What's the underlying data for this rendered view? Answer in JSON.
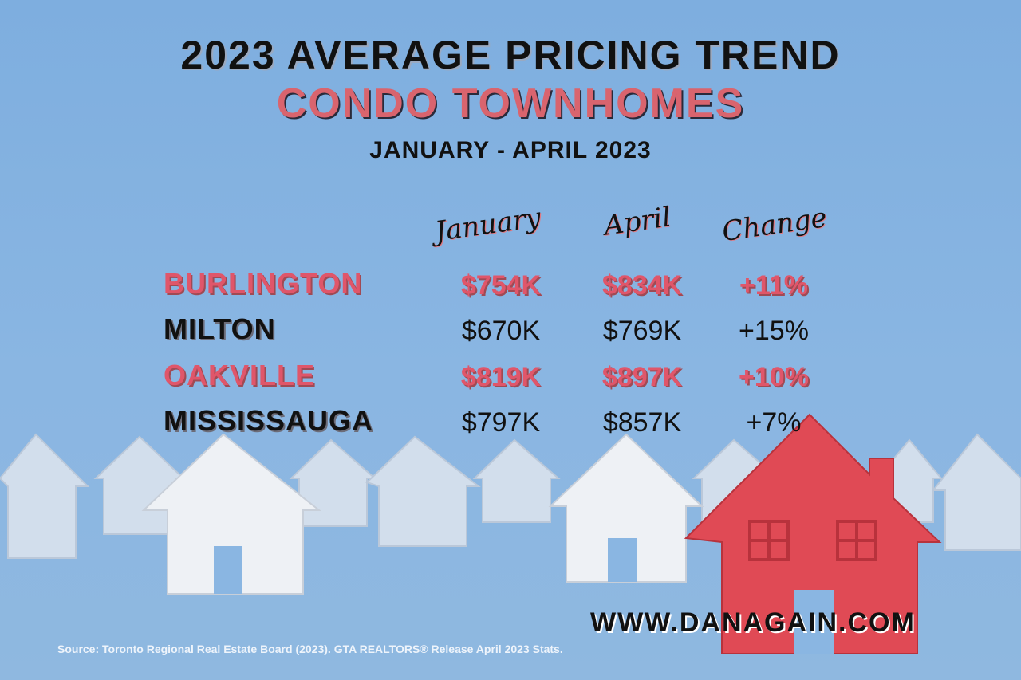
{
  "header": {
    "title": "2023 AVERAGE PRICING TREND",
    "subtitle": "CONDO TOWNHOMES",
    "date_range": "JANUARY - APRIL 2023"
  },
  "colors": {
    "accent": "#e0566a",
    "background": "#8ab6e2",
    "text": "#111111"
  },
  "chart_data": {
    "type": "table",
    "title": "2023 Average Pricing Trend - Condo Townhomes",
    "columns": [
      "January",
      "April",
      "Change"
    ],
    "rows": [
      {
        "city": "BURLINGTON",
        "january": "$754K",
        "april": "$834K",
        "change": "+11%",
        "highlight": true
      },
      {
        "city": "MILTON",
        "january": "$670K",
        "april": "$769K",
        "change": "+15%",
        "highlight": false
      },
      {
        "city": "OAKVILLE",
        "january": "$819K",
        "april": "$897K",
        "change": "+10%",
        "highlight": true
      },
      {
        "city": "MISSISSAUGA",
        "january": "$797K",
        "april": "$857K",
        "change": "+7%",
        "highlight": false
      }
    ]
  },
  "footer": {
    "website": "WWW.DANAGAIN.COM",
    "source": "Source: Toronto Regional Real Estate Board (2023). GTA REALTORS® Release April 2023 Stats."
  }
}
